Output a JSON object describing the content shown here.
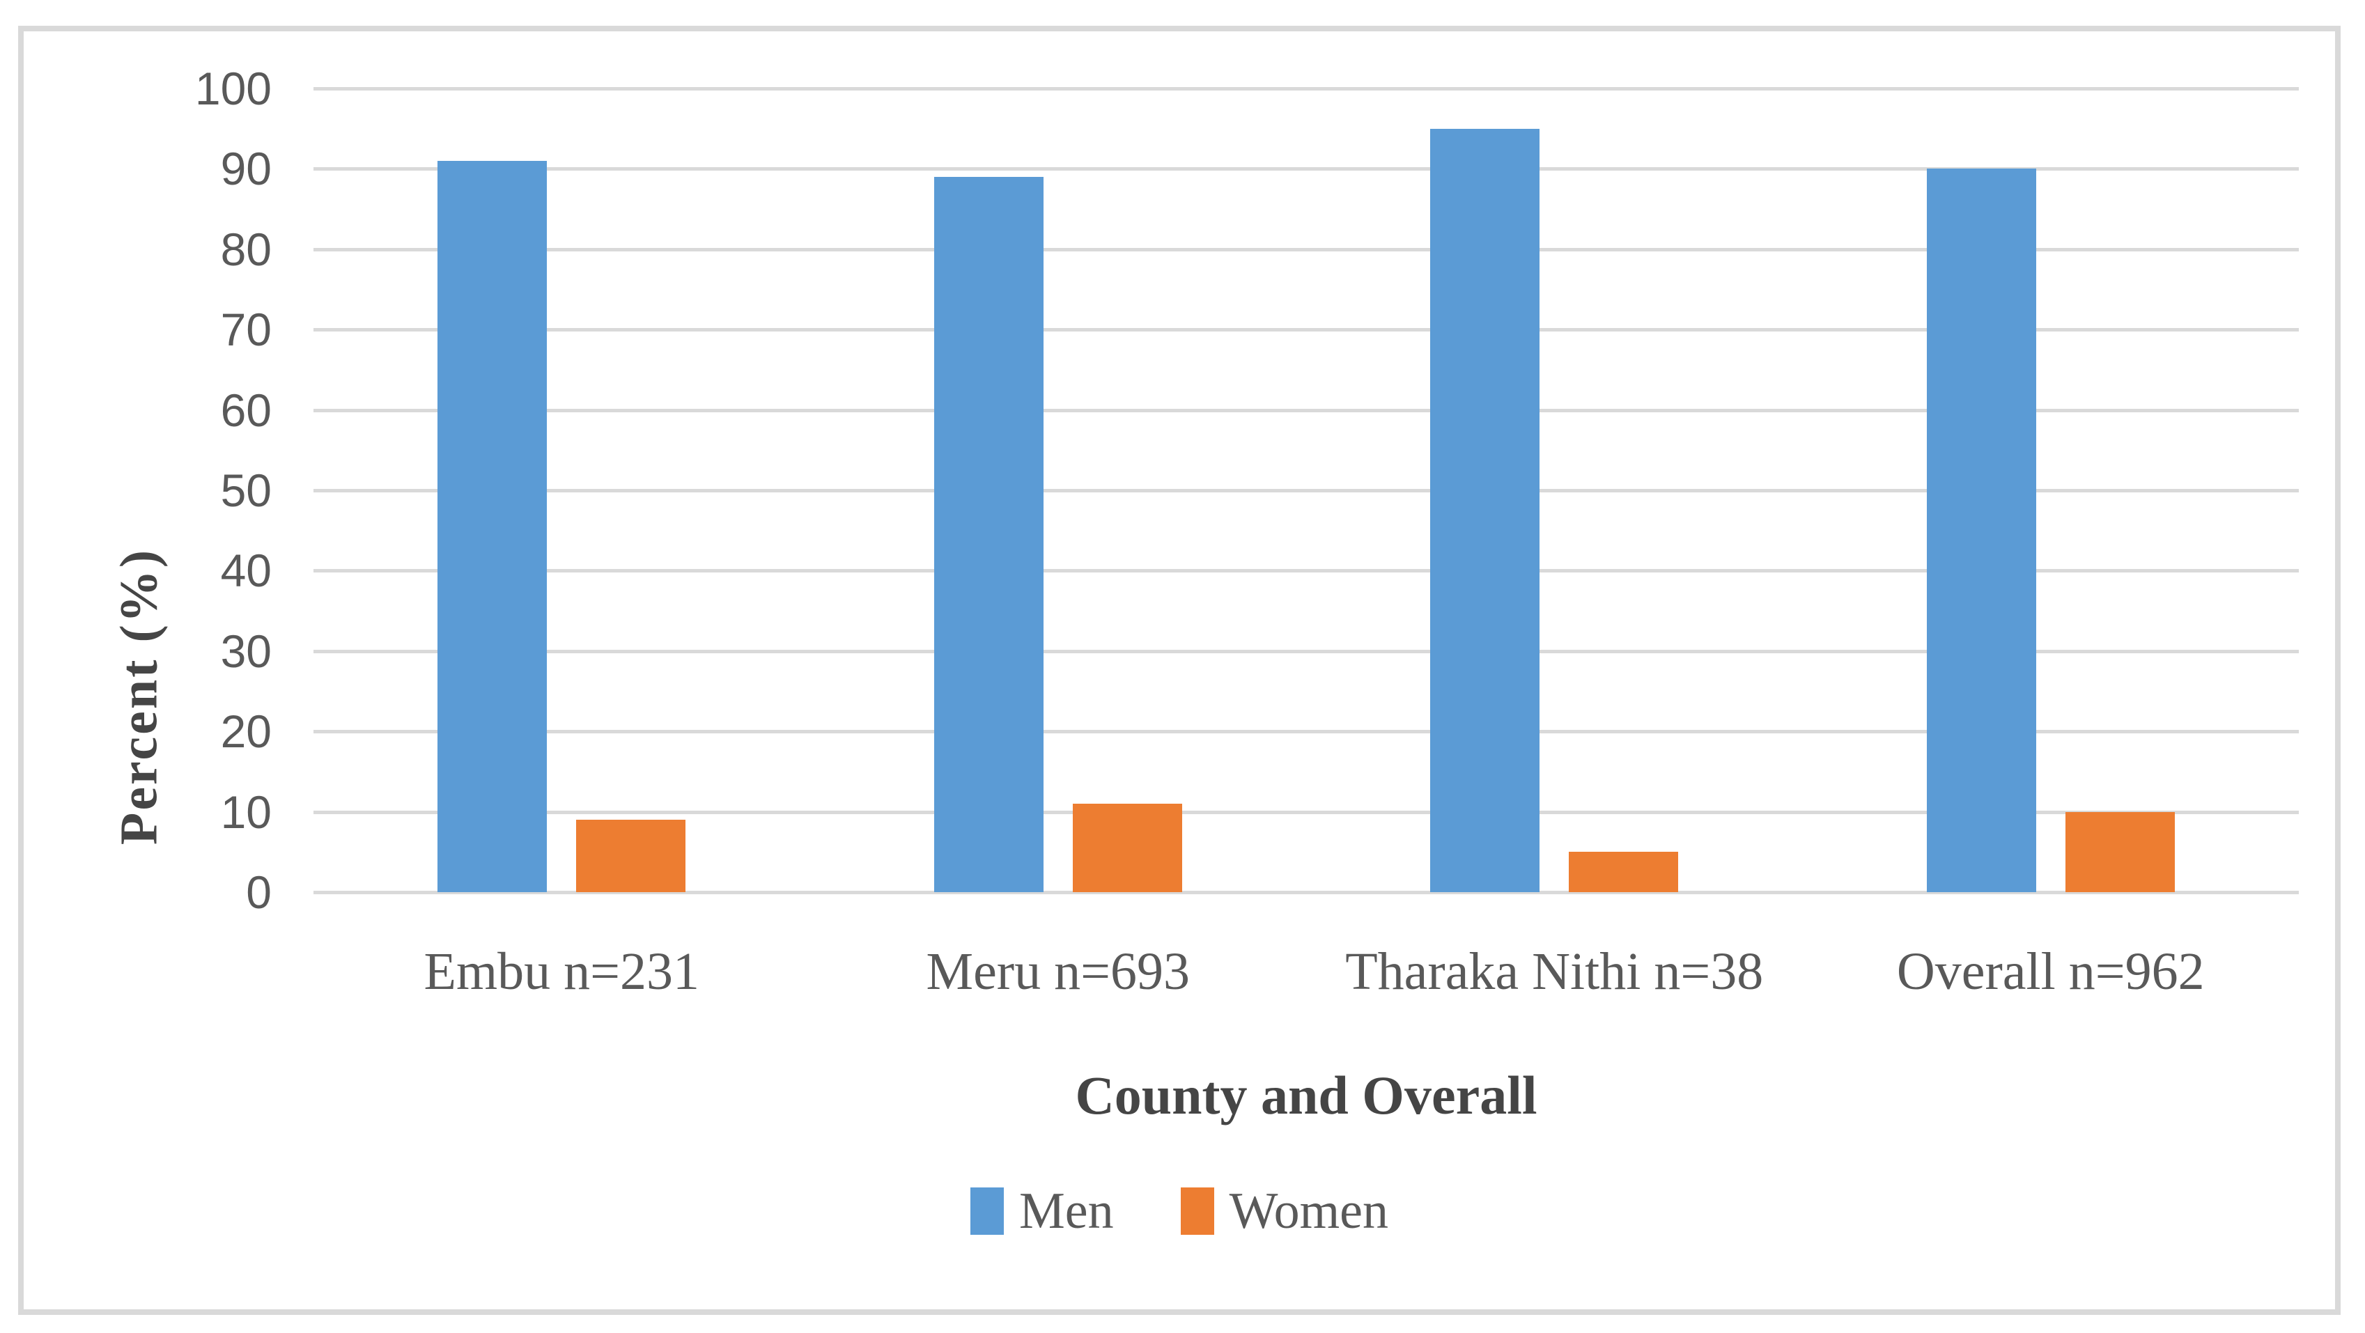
{
  "figure": {
    "y_axis_title": "Percent (%)",
    "x_axis_title": "County and Overall"
  },
  "chart_data": {
    "type": "bar",
    "title": "",
    "categories": [
      "Embu n=231",
      "Meru n=693",
      "Tharaka Nithi n=38",
      "Overall n=962"
    ],
    "series": [
      {
        "name": "Men",
        "color": "#5B9BD5",
        "values": [
          91,
          89,
          95,
          90
        ]
      },
      {
        "name": "Women",
        "color": "#ED7D31",
        "values": [
          9,
          11,
          5,
          10
        ]
      }
    ],
    "xlabel": "County and Overall",
    "ylabel": "Percent (%)",
    "ylim": [
      0,
      100
    ],
    "ytick_interval": 10,
    "yticks": [
      0,
      10,
      20,
      30,
      40,
      50,
      60,
      70,
      80,
      90,
      100
    ],
    "grid": true,
    "legend_position": "bottom",
    "colors": {
      "gridline": "#D9D9D9",
      "frame": "#D9D9D9",
      "tick_text": "#595959",
      "axis_title_text": "#454545"
    }
  }
}
